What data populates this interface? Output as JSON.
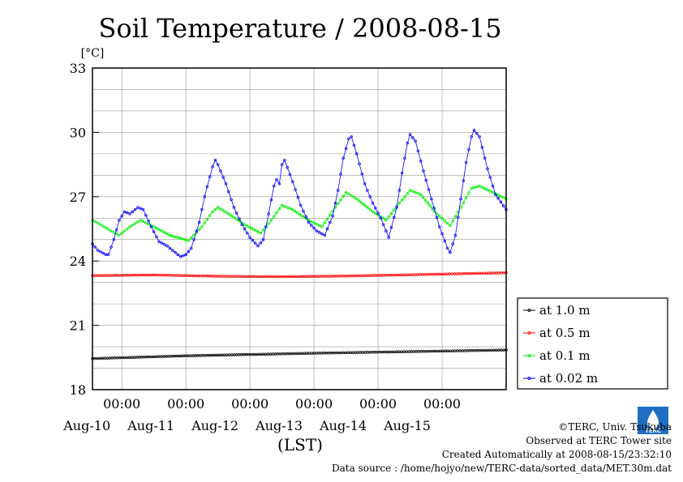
{
  "chart_data": {
    "type": "line",
    "title": "Soil Temperature / 2008-08-15",
    "ylabel": "[°C]",
    "xlabel": "(LST)",
    "ylim": [
      18,
      33
    ],
    "yticks": [
      "18",
      "21",
      "24",
      "27",
      "30",
      "33"
    ],
    "xlim": [
      "2008-08-09T13:00",
      "2008-08-16T00:00"
    ],
    "xticks": [
      {
        "time": "2008-08-10T00:00",
        "label": "00:00",
        "date": "Aug-10"
      },
      {
        "time": "2008-08-11T00:00",
        "label": "00:00",
        "date": "Aug-11"
      },
      {
        "time": "2008-08-12T00:00",
        "label": "00:00",
        "date": "Aug-12"
      },
      {
        "time": "2008-08-13T00:00",
        "label": "00:00",
        "date": "Aug-13"
      },
      {
        "time": "2008-08-14T00:00",
        "label": "00:00",
        "date": "Aug-14"
      },
      {
        "time": "2008-08-15T00:00",
        "label": "00:00",
        "date": "Aug-15"
      }
    ],
    "grid": true,
    "legend_position": "right",
    "series": [
      {
        "name": "at 1.0 m",
        "color": "#000000",
        "points": [
          [
            "2008-08-09T13:00",
            19.45
          ],
          [
            "2008-08-11T00:00",
            19.58
          ],
          [
            "2008-08-13T00:00",
            19.7
          ],
          [
            "2008-08-16T00:00",
            19.85
          ]
        ]
      },
      {
        "name": "at 0.5 m",
        "color": "#ff0000",
        "points": [
          [
            "2008-08-09T13:00",
            23.32
          ],
          [
            "2008-08-10T12:00",
            23.35
          ],
          [
            "2008-08-11T12:00",
            23.29
          ],
          [
            "2008-08-12T12:00",
            23.27
          ],
          [
            "2008-08-13T12:00",
            23.3
          ],
          [
            "2008-08-14T12:00",
            23.36
          ],
          [
            "2008-08-16T00:00",
            23.45
          ]
        ]
      },
      {
        "name": "at 0.1 m",
        "color": "#00ee00",
        "points": [
          [
            "2008-08-09T13:00",
            25.9
          ],
          [
            "2008-08-09T16:00",
            25.7
          ],
          [
            "2008-08-09T20:00",
            25.4
          ],
          [
            "2008-08-09T23:00",
            25.2
          ],
          [
            "2008-08-10T03:00",
            25.6
          ],
          [
            "2008-08-10T07:00",
            25.9
          ],
          [
            "2008-08-10T12:00",
            25.6
          ],
          [
            "2008-08-10T18:00",
            25.2
          ],
          [
            "2008-08-11T01:00",
            24.95
          ],
          [
            "2008-08-11T06:00",
            25.6
          ],
          [
            "2008-08-11T10:00",
            26.3
          ],
          [
            "2008-08-11T12:00",
            26.5
          ],
          [
            "2008-08-11T16:00",
            26.2
          ],
          [
            "2008-08-11T22:00",
            25.7
          ],
          [
            "2008-08-12T04:00",
            25.3
          ],
          [
            "2008-08-12T08:00",
            25.9
          ],
          [
            "2008-08-12T12:00",
            26.6
          ],
          [
            "2008-08-12T16:00",
            26.4
          ],
          [
            "2008-08-12T22:00",
            25.9
          ],
          [
            "2008-08-13T03:00",
            25.6
          ],
          [
            "2008-08-13T08:00",
            26.5
          ],
          [
            "2008-08-13T12:00",
            27.2
          ],
          [
            "2008-08-13T16:00",
            26.9
          ],
          [
            "2008-08-13T22:00",
            26.3
          ],
          [
            "2008-08-14T03:00",
            25.9
          ],
          [
            "2008-08-14T08:00",
            26.7
          ],
          [
            "2008-08-14T12:00",
            27.3
          ],
          [
            "2008-08-14T16:00",
            27.1
          ],
          [
            "2008-08-14T22:00",
            26.2
          ],
          [
            "2008-08-15T03:00",
            25.65
          ],
          [
            "2008-08-15T07:00",
            26.5
          ],
          [
            "2008-08-15T11:00",
            27.4
          ],
          [
            "2008-08-15T14:00",
            27.5
          ],
          [
            "2008-08-15T19:00",
            27.2
          ],
          [
            "2008-08-16T00:00",
            26.9
          ]
        ]
      },
      {
        "name": "at 0.02 m",
        "color": "#0000ff",
        "points": [
          [
            "2008-08-09T13:00",
            24.8
          ],
          [
            "2008-08-09T15:00",
            24.5
          ],
          [
            "2008-08-09T18:00",
            24.3
          ],
          [
            "2008-08-09T19:00",
            24.3
          ],
          [
            "2008-08-09T21:00",
            25.0
          ],
          [
            "2008-08-09T23:00",
            25.9
          ],
          [
            "2008-08-10T01:00",
            26.3
          ],
          [
            "2008-08-10T03:00",
            26.2
          ],
          [
            "2008-08-10T06:00",
            26.5
          ],
          [
            "2008-08-10T08:00",
            26.4
          ],
          [
            "2008-08-10T11:00",
            25.6
          ],
          [
            "2008-08-10T14:00",
            24.9
          ],
          [
            "2008-08-10T17:00",
            24.7
          ],
          [
            "2008-08-10T20:00",
            24.4
          ],
          [
            "2008-08-10T22:00",
            24.2
          ],
          [
            "2008-08-11T00:00",
            24.3
          ],
          [
            "2008-08-11T02:00",
            24.6
          ],
          [
            "2008-08-11T05:00",
            25.8
          ],
          [
            "2008-08-11T07:00",
            27.0
          ],
          [
            "2008-08-11T10:00",
            28.4
          ],
          [
            "2008-08-11T11:00",
            28.7
          ],
          [
            "2008-08-11T12:00",
            28.5
          ],
          [
            "2008-08-11T15:00",
            27.6
          ],
          [
            "2008-08-11T18:00",
            26.5
          ],
          [
            "2008-08-11T21:00",
            25.7
          ],
          [
            "2008-08-12T00:00",
            25.1
          ],
          [
            "2008-08-12T03:00",
            24.7
          ],
          [
            "2008-08-12T05:00",
            25.0
          ],
          [
            "2008-08-12T07:00",
            26.2
          ],
          [
            "2008-08-12T09:00",
            27.5
          ],
          [
            "2008-08-12T10:00",
            27.8
          ],
          [
            "2008-08-12T11:00",
            27.6
          ],
          [
            "2008-08-12T12:00",
            28.5
          ],
          [
            "2008-08-12T13:00",
            28.7
          ],
          [
            "2008-08-12T16:00",
            27.7
          ],
          [
            "2008-08-12T19:00",
            26.6
          ],
          [
            "2008-08-12T22:00",
            25.8
          ],
          [
            "2008-08-13T01:00",
            25.4
          ],
          [
            "2008-08-13T04:00",
            25.2
          ],
          [
            "2008-08-13T07:00",
            26.1
          ],
          [
            "2008-08-13T09:00",
            27.3
          ],
          [
            "2008-08-13T11:00",
            28.8
          ],
          [
            "2008-08-13T13:00",
            29.7
          ],
          [
            "2008-08-13T14:00",
            29.8
          ],
          [
            "2008-08-13T16:00",
            29.0
          ],
          [
            "2008-08-13T19:00",
            27.6
          ],
          [
            "2008-08-13T22:00",
            26.7
          ],
          [
            "2008-08-14T01:00",
            26.0
          ],
          [
            "2008-08-14T04:00",
            25.1
          ],
          [
            "2008-08-14T07:00",
            26.5
          ],
          [
            "2008-08-14T09:00",
            28.1
          ],
          [
            "2008-08-14T11:00",
            29.5
          ],
          [
            "2008-08-14T12:00",
            29.9
          ],
          [
            "2008-08-14T14:00",
            29.6
          ],
          [
            "2008-08-14T17:00",
            28.2
          ],
          [
            "2008-08-14T20:00",
            26.9
          ],
          [
            "2008-08-14T23:00",
            25.6
          ],
          [
            "2008-08-15T02:00",
            24.6
          ],
          [
            "2008-08-15T03:00",
            24.4
          ],
          [
            "2008-08-15T05:00",
            25.2
          ],
          [
            "2008-08-15T07:00",
            26.9
          ],
          [
            "2008-08-15T09:00",
            28.6
          ],
          [
            "2008-08-15T11:00",
            29.8
          ],
          [
            "2008-08-15T12:00",
            30.1
          ],
          [
            "2008-08-15T14:00",
            29.8
          ],
          [
            "2008-08-15T17:00",
            28.3
          ],
          [
            "2008-08-15T20:00",
            27.1
          ],
          [
            "2008-08-16T00:00",
            26.4
          ]
        ]
      }
    ]
  },
  "footer": {
    "copyright": "©TERC, Univ. Tsukuba",
    "observed": "Observed at TERC Tower site",
    "created": "Created Automatically at 2008-08-15/23:32:10",
    "source": "Data source : /home/hojyo/new/TERC-data/sorted_data/MET.30m.dat",
    "logo_text": "TERC"
  }
}
